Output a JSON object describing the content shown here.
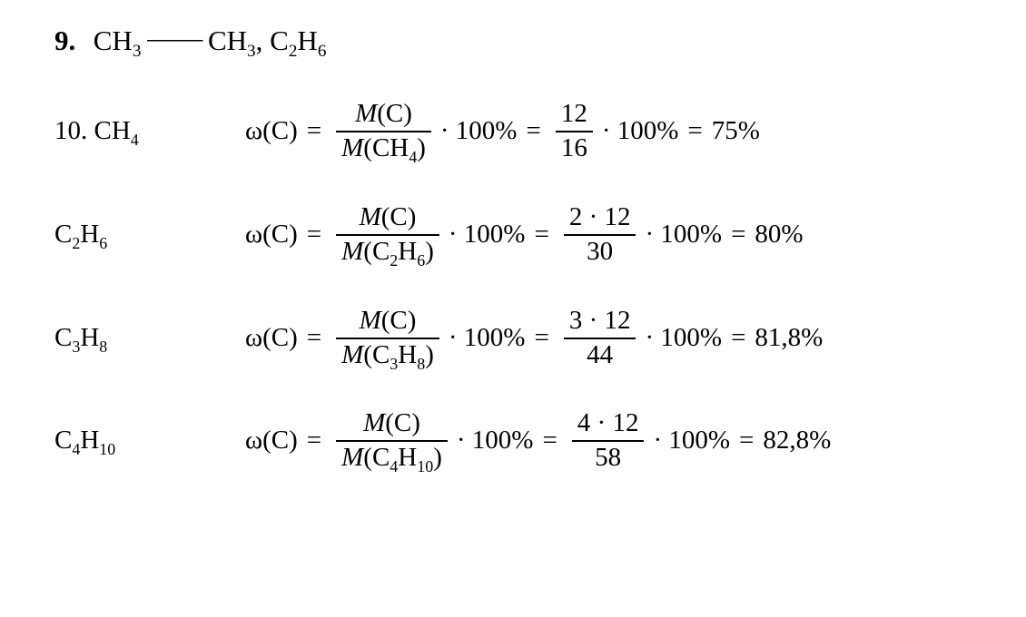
{
  "line9": {
    "number": "9.",
    "text_html": "CH<sub>3</sub><span class=\"bond\">&nbsp;&#8212;&#8212;&nbsp;</span>CH<sub>3</sub>, C<sub>2</sub>H<sub>6</sub>"
  },
  "line10_label_html": "10. CH<sub>4</sub>",
  "rows": [
    {
      "compound_html": "CH<sub>4</sub>",
      "numerator_html": "<span class=\"it\">M</span>(C)",
      "denominator_html": "<span class=\"it\">M</span>(CH<sub>4</sub>)",
      "num2": "12",
      "den2": "16",
      "result": "75%"
    },
    {
      "compound_html": "C<sub>2</sub>H<sub>6</sub>",
      "numerator_html": "<span class=\"it\">M</span>(C)",
      "denominator_html": "<span class=\"it\">M</span>(C<sub>2</sub>H<sub>6</sub>)",
      "num2": "2 &middot; 12",
      "den2": "30",
      "result": "80%"
    },
    {
      "compound_html": "C<sub>3</sub>H<sub>8</sub>",
      "numerator_html": "<span class=\"it\">M</span>(C)",
      "denominator_html": "<span class=\"it\">M</span>(C<sub>3</sub>H<sub>8</sub>)",
      "num2": "3 &middot; 12",
      "den2": "44",
      "result": "81,8%"
    },
    {
      "compound_html": "C<sub>4</sub>H<sub>10</sub>",
      "numerator_html": "<span class=\"it\">M</span>(C)",
      "denominator_html": "<span class=\"it\">M</span>(C<sub>4</sub>H<sub>10</sub>)",
      "num2": "4 &middot; 12",
      "den2": "58",
      "result": "82,8%"
    }
  ],
  "omega_html": "&#969;(C)",
  "times100": "&middot; 100%",
  "equals": "="
}
